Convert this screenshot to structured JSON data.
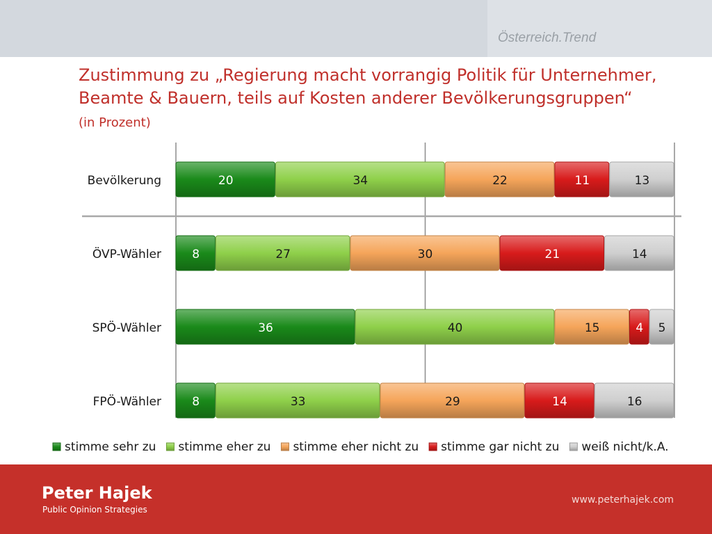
{
  "header": {
    "brand": "Österreich.Trend",
    "title": "Zustimmung zu „Regierung macht vorrangig Politik für Unternehmer, Beamte & Bauern, teils auf Kosten anderer Bevölkerungsgruppen“",
    "subtitle": "(in Prozent)"
  },
  "chart_data": {
    "type": "bar",
    "orientation": "horizontal",
    "stacked": true,
    "categories": [
      "Bevölkerung",
      "ÖVP-Wähler",
      "SPÖ-Wähler",
      "FPÖ-Wähler"
    ],
    "series": [
      {
        "name": "stimme sehr zu",
        "values": [
          20,
          8,
          36,
          8
        ],
        "color": "#1a8a1a"
      },
      {
        "name": "stimme eher zu",
        "values": [
          34,
          27,
          40,
          33
        ],
        "color": "#8fd04a"
      },
      {
        "name": "stimme eher nicht zu",
        "values": [
          22,
          30,
          15,
          29
        ],
        "color": "#f5a55a"
      },
      {
        "name": "stimme gar nicht zu",
        "values": [
          11,
          21,
          4,
          14
        ],
        "color": "#d81b1b"
      },
      {
        "name": "weiß nicht/k.A.",
        "values": [
          13,
          14,
          5,
          16
        ],
        "color": "#cfcfcf"
      }
    ],
    "xlim": [
      0,
      100
    ],
    "grid": true,
    "legend_position": "bottom"
  },
  "footer": {
    "name": "Peter Hajek",
    "tagline": "Public Opinion Strategies",
    "url": "www.peterhajek.com"
  }
}
